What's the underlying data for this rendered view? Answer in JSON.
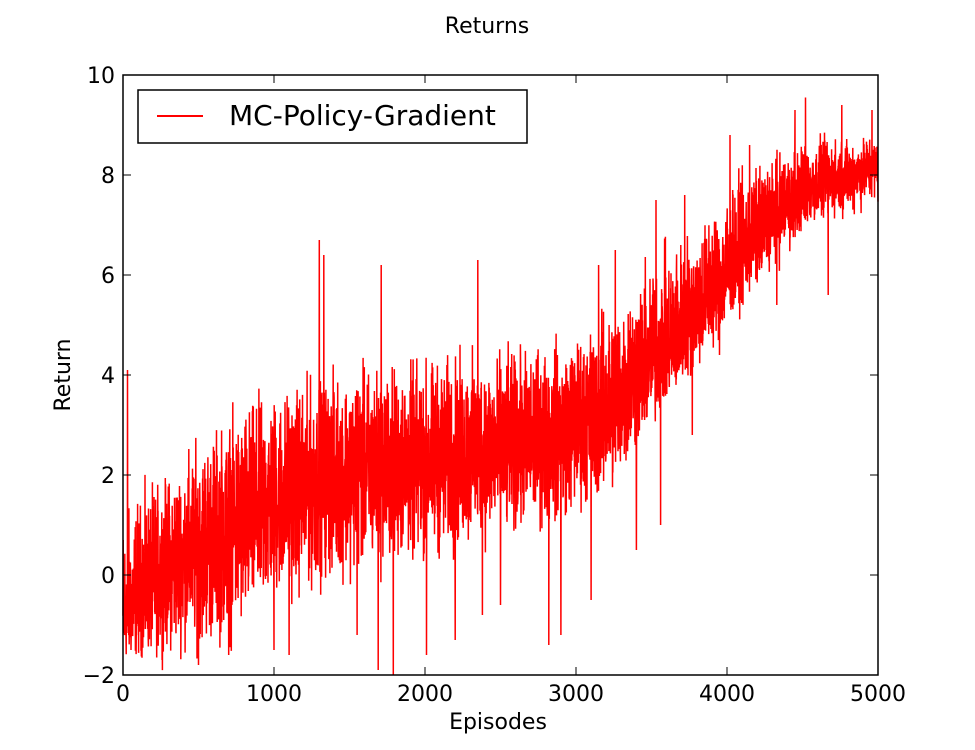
{
  "chart_data": {
    "type": "line",
    "title": "Returns",
    "xlabel": "Episodes",
    "ylabel": "Return",
    "xlim": [
      0,
      5000
    ],
    "ylim": [
      -2,
      10
    ],
    "xticks": [
      0,
      1000,
      2000,
      3000,
      4000,
      5000
    ],
    "xtick_labels": [
      "0",
      "1000",
      "2000",
      "3000",
      "4000",
      "5000"
    ],
    "yticks": [
      -2,
      0,
      2,
      4,
      6,
      8,
      10
    ],
    "ytick_labels": [
      "−2",
      "0",
      "2",
      "4",
      "6",
      "8",
      "10"
    ],
    "grid": false,
    "legend_position": "top-left",
    "series": [
      {
        "name": "MC-Policy-Gradient",
        "color": "#ff0000",
        "x": [
          0,
          100,
          200,
          300,
          400,
          500,
          600,
          700,
          800,
          900,
          1000,
          1100,
          1200,
          1300,
          1400,
          1500,
          1600,
          1700,
          1800,
          1900,
          2000,
          2100,
          2200,
          2300,
          2400,
          2500,
          2600,
          2700,
          2800,
          2900,
          3000,
          3100,
          3200,
          3300,
          3400,
          3500,
          3600,
          3700,
          3800,
          3900,
          4000,
          4100,
          4200,
          4300,
          4400,
          4500,
          4600,
          4700,
          4800,
          4900,
          5000
        ],
        "mean": [
          -1.0,
          -0.6,
          -0.3,
          0.0,
          0.3,
          0.5,
          0.7,
          0.9,
          1.1,
          1.3,
          1.5,
          1.6,
          1.7,
          1.8,
          1.9,
          2.0,
          2.1,
          2.15,
          2.2,
          2.25,
          2.3,
          2.35,
          2.4,
          2.45,
          2.5,
          2.55,
          2.6,
          2.65,
          2.7,
          2.8,
          2.9,
          3.1,
          3.3,
          3.6,
          3.9,
          4.2,
          4.5,
          4.8,
          5.2,
          5.6,
          6.0,
          6.4,
          6.8,
          7.1,
          7.4,
          7.6,
          7.8,
          7.9,
          8.0,
          8.1,
          8.2
        ],
        "band_low": [
          -2.0,
          -2.0,
          -2.0,
          -2.0,
          -2.0,
          -2.0,
          -2.0,
          -2.0,
          -2.0,
          -1.6,
          -1.2,
          -1.0,
          -1.0,
          -0.8,
          -0.6,
          -0.6,
          -0.5,
          -0.6,
          -0.4,
          -0.4,
          -0.3,
          -0.3,
          -0.2,
          -0.1,
          0.0,
          0.0,
          0.3,
          0.4,
          0.4,
          0.6,
          0.8,
          0.9,
          1.0,
          1.4,
          2.0,
          2.6,
          3.0,
          3.4,
          3.8,
          4.2,
          4.6,
          5.0,
          5.4,
          5.8,
          6.2,
          6.6,
          6.8,
          6.9,
          7.0,
          7.1,
          7.2
        ],
        "band_high": [
          2.0,
          2.2,
          2.4,
          2.6,
          3.0,
          3.3,
          3.6,
          3.8,
          4.0,
          4.2,
          4.3,
          4.4,
          4.5,
          4.6,
          4.7,
          4.8,
          4.8,
          4.8,
          4.8,
          4.8,
          4.9,
          4.9,
          5.0,
          5.0,
          5.0,
          5.0,
          5.0,
          5.1,
          5.2,
          5.3,
          5.4,
          5.6,
          5.9,
          6.3,
          6.6,
          6.9,
          7.1,
          7.4,
          7.6,
          7.9,
          8.2,
          8.4,
          8.6,
          8.8,
          8.9,
          9.0,
          9.0,
          9.0,
          9.0,
          9.0,
          9.0
        ],
        "peaks": [
          [
            30,
            4.1
          ],
          [
            1300,
            6.7
          ],
          [
            1330,
            6.4
          ],
          [
            1710,
            6.2
          ],
          [
            2010,
            6.0
          ],
          [
            2350,
            6.3
          ],
          [
            2900,
            5.6
          ],
          [
            3150,
            6.2
          ],
          [
            3260,
            6.5
          ],
          [
            3400,
            6.9
          ],
          [
            3530,
            7.5
          ],
          [
            3720,
            7.6
          ],
          [
            4020,
            8.8
          ],
          [
            4150,
            8.6
          ],
          [
            4450,
            9.3
          ],
          [
            4520,
            9.55
          ],
          [
            4760,
            9.4
          ],
          [
            4960,
            9.3
          ]
        ],
        "troughs": [
          [
            500,
            -1.8
          ],
          [
            700,
            -1.6
          ],
          [
            1000,
            -1.5
          ],
          [
            1100,
            -1.6
          ],
          [
            1550,
            -1.2
          ],
          [
            1690,
            -1.9
          ],
          [
            1790,
            -2.0
          ],
          [
            2010,
            -1.6
          ],
          [
            2200,
            -1.3
          ],
          [
            2380,
            -0.8
          ],
          [
            2500,
            -0.6
          ],
          [
            2820,
            -1.4
          ],
          [
            2900,
            -1.2
          ],
          [
            3100,
            -0.5
          ],
          [
            3400,
            0.5
          ],
          [
            3560,
            1.0
          ],
          [
            3770,
            2.8
          ],
          [
            3950,
            4.4
          ],
          [
            4330,
            5.4
          ],
          [
            4670,
            5.6
          ]
        ]
      }
    ]
  }
}
